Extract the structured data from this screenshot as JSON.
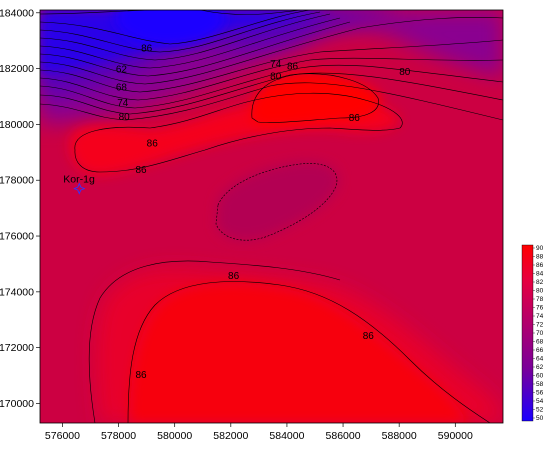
{
  "chart_data": {
    "type": "contour",
    "x_ticks": [
      "576000",
      "578000",
      "580000",
      "582000",
      "584000",
      "586000",
      "588000",
      "590000"
    ],
    "y_ticks": [
      "170000",
      "172000",
      "174000",
      "176000",
      "178000",
      "180000",
      "182000",
      "184000"
    ],
    "xlim": [
      575200,
      591700
    ],
    "ylim": [
      169300,
      184100
    ],
    "colorbar": {
      "min": 50,
      "max": 90,
      "ticks": [
        "90",
        "88",
        "86",
        "84",
        "82",
        "80",
        "78",
        "76",
        "74",
        "72",
        "70",
        "68",
        "66",
        "64",
        "62",
        "60",
        "58",
        "56",
        "54",
        "52",
        "50"
      ],
      "low_color": "#1a00ff",
      "high_color": "#ff0000"
    },
    "contour_labels": [
      {
        "text": "86",
        "x": 579000,
        "y": 182650
      },
      {
        "text": "62",
        "x": 578100,
        "y": 181900
      },
      {
        "text": "68",
        "x": 578100,
        "y": 181250
      },
      {
        "text": "74",
        "x": 578150,
        "y": 180700
      },
      {
        "text": "80",
        "x": 578200,
        "y": 180200
      },
      {
        "text": "74",
        "x": 583600,
        "y": 182100
      },
      {
        "text": "80",
        "x": 583600,
        "y": 181650
      },
      {
        "text": "86",
        "x": 584200,
        "y": 182000
      },
      {
        "text": "80",
        "x": 588200,
        "y": 181800
      },
      {
        "text": "86",
        "x": 586400,
        "y": 180150
      },
      {
        "text": "86",
        "x": 579200,
        "y": 179250
      },
      {
        "text": "86",
        "x": 578800,
        "y": 178300
      },
      {
        "text": "86",
        "x": 582100,
        "y": 174500
      },
      {
        "text": "86",
        "x": 586900,
        "y": 172350
      },
      {
        "text": "86",
        "x": 578800,
        "y": 170950
      }
    ],
    "wells": [
      {
        "name": "Kor-1g",
        "x": 576600,
        "y": 177700
      }
    ]
  }
}
